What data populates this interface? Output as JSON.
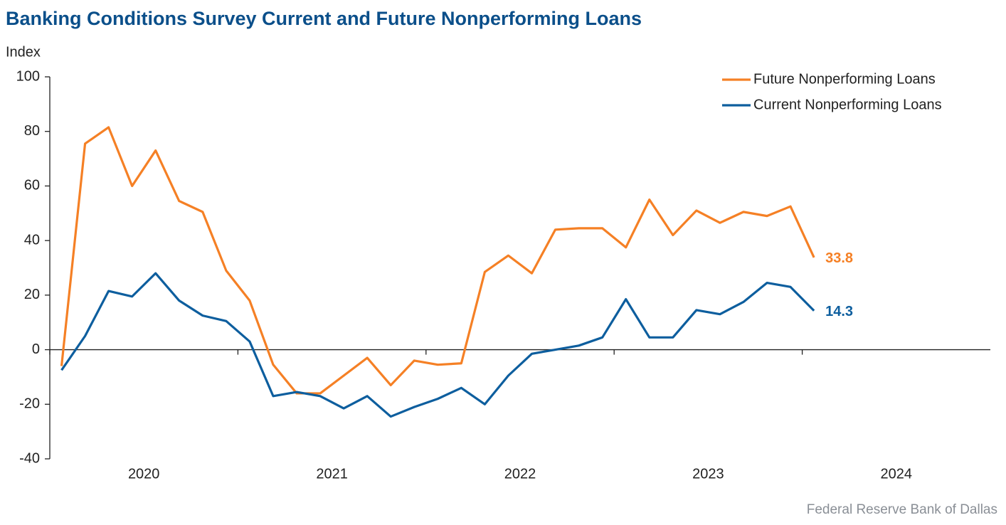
{
  "chart_data": {
    "type": "line",
    "title": "Banking Conditions Survey Current and Future Nonperforming Loans",
    "y_label": "Index",
    "source": "Federal Reserve Bank of Dallas",
    "x": [
      2020.0625,
      2020.1875,
      2020.3125,
      2020.4375,
      2020.5625,
      2020.6875,
      2020.8125,
      2020.9375,
      2021.0625,
      2021.1875,
      2021.3125,
      2021.4375,
      2021.5625,
      2021.6875,
      2021.8125,
      2021.9375,
      2022.0625,
      2022.1875,
      2022.3125,
      2022.4375,
      2022.5625,
      2022.6875,
      2022.8125,
      2022.9375,
      2023.0625,
      2023.1875,
      2023.3125,
      2023.4375,
      2023.5625,
      2023.6875,
      2023.8125,
      2023.9375,
      2024.0625
    ],
    "series": [
      {
        "name": "Future Nonperforming Loans",
        "color": "#f58025",
        "values": [
          -6,
          75.5,
          81.5,
          60,
          73,
          54.5,
          50.5,
          29,
          18,
          -5.5,
          -16,
          -16,
          -9.5,
          -3,
          -13,
          -4,
          -5.5,
          -5,
          28.5,
          34.5,
          28,
          44,
          44.5,
          44.5,
          37.5,
          55,
          42,
          51,
          46.5,
          50.5,
          49,
          52.5,
          33.8
        ]
      },
      {
        "name": "Current Nonperforming Loans",
        "color": "#0d5e9e",
        "values": [
          -7.5,
          5,
          21.5,
          19.5,
          28,
          18,
          12.5,
          10.5,
          3,
          -17,
          -15.5,
          -17,
          -21.5,
          -17,
          -24.5,
          -21,
          -18,
          -14,
          -20,
          -9.5,
          -1.5,
          0,
          1.5,
          4.5,
          18.5,
          4.5,
          4.5,
          14.5,
          13,
          17.5,
          24.5,
          23,
          14.3
        ]
      }
    ],
    "xlim": [
      2020,
      2025
    ],
    "xticks": [
      {
        "value": 2020,
        "label": "2020"
      },
      {
        "value": 2021,
        "label": "2021"
      },
      {
        "value": 2022,
        "label": "2022"
      },
      {
        "value": 2023,
        "label": "2023"
      },
      {
        "value": 2024,
        "label": "2024"
      }
    ],
    "ylim": [
      -40,
      100
    ],
    "yticks": [
      -40,
      -20,
      0,
      20,
      40,
      60,
      80,
      100
    ],
    "legend": "upper right",
    "grid": false
  }
}
